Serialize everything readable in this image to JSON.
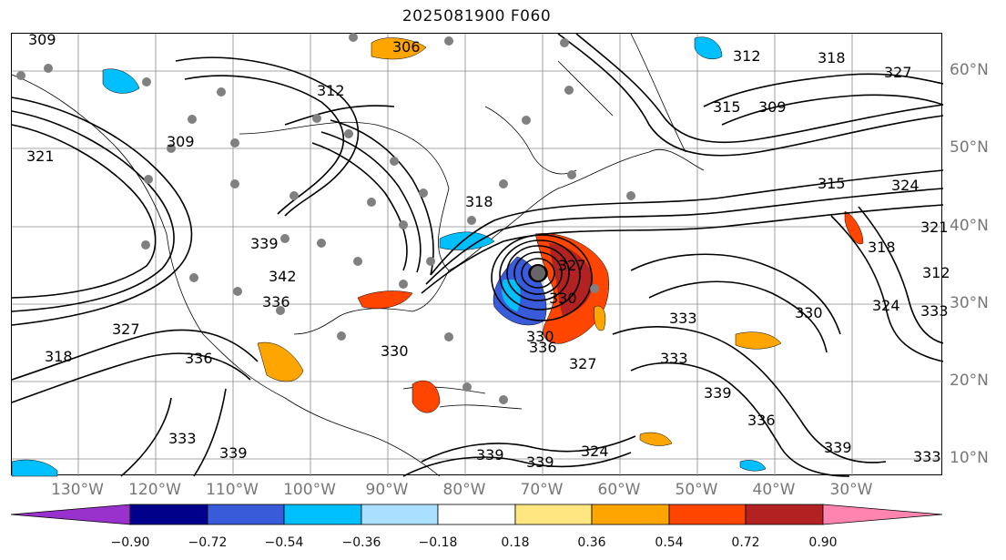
{
  "title": "2025081900 F060",
  "longitude_labels": [
    "130°W",
    "120°W",
    "110°W",
    "100°W",
    "90°W",
    "80°W",
    "70°W",
    "60°W",
    "50°W",
    "40°W",
    "30°W"
  ],
  "latitude_labels": [
    "60°N",
    "50°N",
    "40°N",
    "30°N",
    "20°N",
    "10°N"
  ],
  "colorbar": {
    "tick_labels": [
      "−0.90",
      "−0.72",
      "−0.54",
      "−0.36",
      "−0.18",
      "0.18",
      "0.36",
      "0.54",
      "0.72",
      "0.90"
    ],
    "colors": [
      "#9932cc",
      "#00008b",
      "#3a5bd9",
      "#00bfff",
      "#aadfff",
      "#ffffff",
      "#ffe680",
      "#ffa500",
      "#ff4500",
      "#b22222",
      "#ff85b0"
    ]
  },
  "contour_labels": [
    "309",
    "306",
    "312",
    "318",
    "327",
    "315",
    "309",
    "309",
    "312",
    "321",
    "324",
    "321",
    "318",
    "312",
    "339",
    "342",
    "318",
    "327",
    "330",
    "336",
    "333",
    "339",
    "333",
    "330",
    "327",
    "330",
    "324",
    "339",
    "336",
    "333",
    "339",
    "318",
    "336",
    "330",
    "327",
    "333",
    "339",
    "324",
    "333",
    "339",
    "336",
    "315"
  ],
  "storm_center": {
    "lat": "34°N",
    "lon": "70°W"
  },
  "colors": {
    "contour": "#000000",
    "gridline": "#8a8a8a",
    "coastline": "#000000",
    "station_dot": "#808080"
  }
}
